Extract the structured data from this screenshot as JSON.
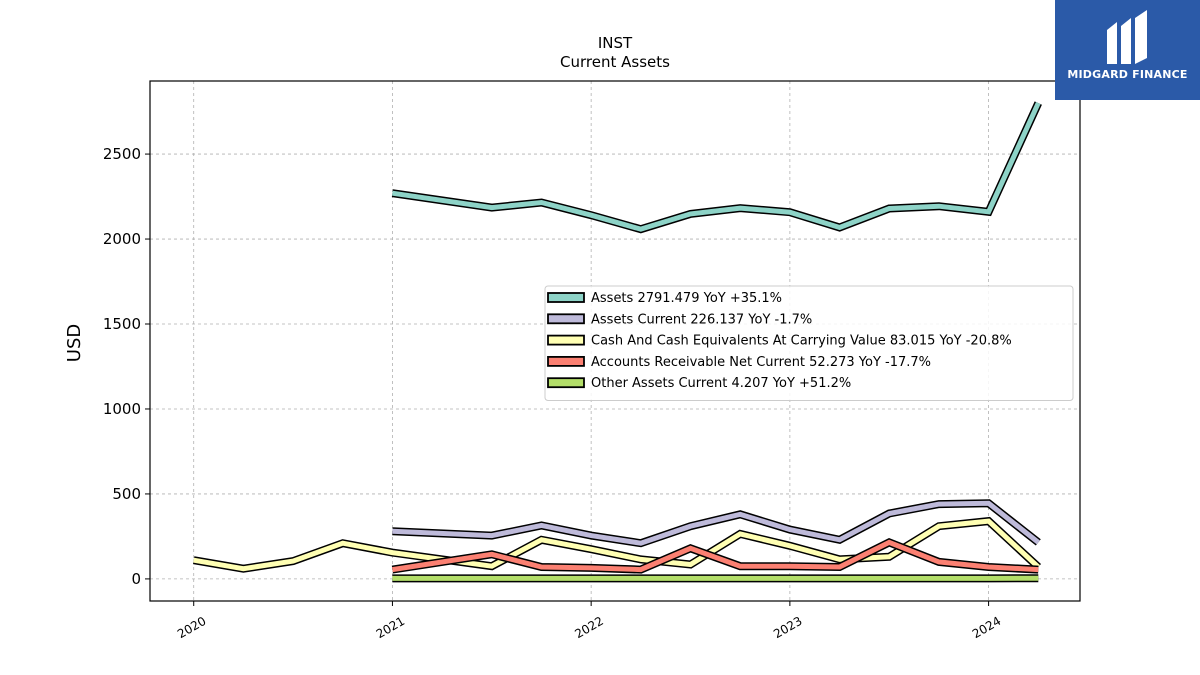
{
  "brand": {
    "name": "MIDGARD FINANCE",
    "bg_color": "#2b5aa8"
  },
  "chart_data": {
    "type": "line",
    "title": "INST",
    "subtitle": "Current  Assets",
    "ylabel": "USD",
    "xlabel": "",
    "x_ticks": [
      "2020",
      "2021",
      "2022",
      "2023",
      "2024"
    ],
    "y_ticks": [
      0,
      500,
      1000,
      1500,
      2000,
      2500
    ],
    "xlim": [
      2019.78,
      2024.46
    ],
    "ylim": [
      -130,
      2930
    ],
    "grid": true,
    "legend_position": "center-right",
    "series": [
      {
        "name": "Assets",
        "legend": "Assets  2791.479 YoY +35.1%",
        "color": "#8dd3c7",
        "points": [
          [
            2021.0,
            2270
          ],
          [
            2021.5,
            2185
          ],
          [
            2021.75,
            2215
          ],
          [
            2022.0,
            2140
          ],
          [
            2022.25,
            2058
          ],
          [
            2022.5,
            2148
          ],
          [
            2022.75,
            2182
          ],
          [
            2023.0,
            2158
          ],
          [
            2023.25,
            2068
          ],
          [
            2023.5,
            2180
          ],
          [
            2023.75,
            2193
          ],
          [
            2024.0,
            2160
          ],
          [
            2024.25,
            2800
          ]
        ]
      },
      {
        "name": "Assets Current",
        "legend": "Assets Current  226.137 YoY -1.7%",
        "color": "#bebada",
        "points": [
          [
            2021.0,
            280
          ],
          [
            2021.5,
            255
          ],
          [
            2021.75,
            315
          ],
          [
            2022.0,
            255
          ],
          [
            2022.25,
            210
          ],
          [
            2022.5,
            310
          ],
          [
            2022.75,
            380
          ],
          [
            2023.0,
            290
          ],
          [
            2023.25,
            230
          ],
          [
            2023.5,
            385
          ],
          [
            2023.75,
            440
          ],
          [
            2024.0,
            445
          ],
          [
            2024.25,
            215
          ]
        ]
      },
      {
        "name": "Cash And Cash Equivalents At Carrying Value",
        "legend": "Cash And Cash Equivalents At Carrying Value  83.015 YoY -20.8%",
        "color": "#ffffb3",
        "points": [
          [
            2020.0,
            110
          ],
          [
            2020.25,
            60
          ],
          [
            2020.5,
            105
          ],
          [
            2020.75,
            210
          ],
          [
            2021.0,
            155
          ],
          [
            2021.5,
            75
          ],
          [
            2021.75,
            230
          ],
          [
            2022.0,
            175
          ],
          [
            2022.25,
            115
          ],
          [
            2022.5,
            85
          ],
          [
            2022.75,
            265
          ],
          [
            2023.0,
            195
          ],
          [
            2023.25,
            115
          ],
          [
            2023.5,
            130
          ],
          [
            2023.75,
            310
          ],
          [
            2024.0,
            340
          ],
          [
            2024.25,
            70
          ]
        ]
      },
      {
        "name": "Accounts Receivable Net Current",
        "legend": "Accounts Receivable Net Current  52.273 YoY -17.7%",
        "color": "#fb8072",
        "points": [
          [
            2021.0,
            55
          ],
          [
            2021.5,
            145
          ],
          [
            2021.75,
            70
          ],
          [
            2022.0,
            65
          ],
          [
            2022.25,
            55
          ],
          [
            2022.5,
            180
          ],
          [
            2022.75,
            75
          ],
          [
            2023.0,
            75
          ],
          [
            2023.25,
            70
          ],
          [
            2023.5,
            215
          ],
          [
            2023.75,
            100
          ],
          [
            2024.0,
            70
          ],
          [
            2024.25,
            55
          ]
        ]
      },
      {
        "name": "Other Assets Current",
        "legend": "Other Assets Current  4.207 YoY +51.2%",
        "color": "#b3de69",
        "points": [
          [
            2021.0,
            3
          ],
          [
            2021.5,
            3
          ],
          [
            2021.75,
            3
          ],
          [
            2022.0,
            3
          ],
          [
            2022.25,
            3
          ],
          [
            2022.5,
            3
          ],
          [
            2022.75,
            3
          ],
          [
            2023.0,
            3
          ],
          [
            2023.25,
            3
          ],
          [
            2023.5,
            3
          ],
          [
            2023.75,
            3
          ],
          [
            2024.0,
            3
          ],
          [
            2024.25,
            4
          ]
        ]
      }
    ]
  }
}
